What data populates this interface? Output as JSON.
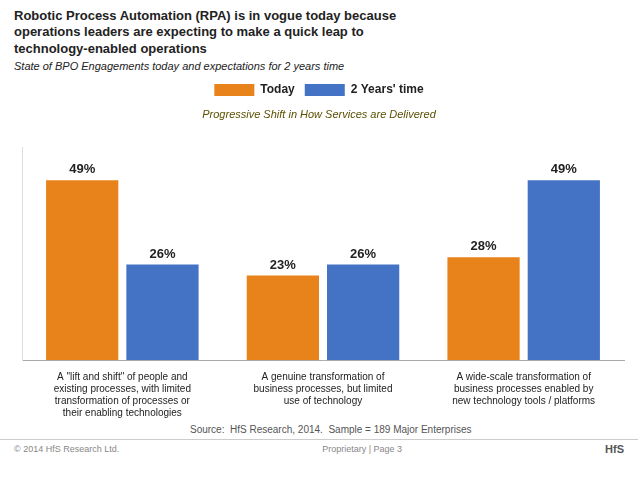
{
  "chart_data": {
    "type": "bar",
    "title": [
      "Robotic Process Automation (RPA) is in vogue today because",
      "operations leaders are expecting to make a quick leap to",
      "technology-enabled operations"
    ],
    "subtitle": "State of BPO Engagements today and expectations for 2 years time",
    "categories": [
      "A \"lift and shift\" of people and\nexisting processes, with limited\ntransformation of processes or\ntheir enabling technologies",
      "A genuine transformation of\nbusiness processes, but limited\nuse of technology",
      "A wide-scale transformation of\nbusiness processes enabled by\nnew technology tools / platforms"
    ],
    "series": [
      {
        "name": "Today",
        "color": "#E8821A",
        "values": [
          49,
          23,
          28
        ],
        "value_labels": [
          "49%",
          "23%",
          "28%"
        ]
      },
      {
        "name": "2 Years' time",
        "color": "#4472C4",
        "values": [
          26,
          26,
          49
        ],
        "value_labels": [
          "26%",
          "26%",
          "49%"
        ]
      }
    ],
    "ylim": [
      0,
      58
    ],
    "data_labels": true,
    "tick_labels": "x",
    "grid": false,
    "legend": "top",
    "annotations": [
      "Progressive Shift in How Services are Delivered",
      "Source:  HfS Research, 2014.  Sample = 189 Major Enterprises",
      "© 2014 HfS Research Ltd.",
      "Proprietary | Page 3",
      "HfS"
    ]
  }
}
